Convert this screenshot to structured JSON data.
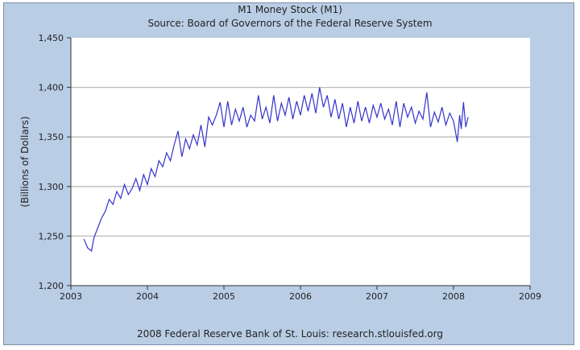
{
  "chart_data": {
    "type": "line",
    "title": "M1 Money Stock (M1)",
    "subtitle": "Source: Board of Governors of the Federal Reserve System",
    "ylabel": "(Billions of Dollars)",
    "xlabel": "",
    "footer": "2008 Federal Reserve Bank of St. Louis: research.stlouisfed.org",
    "xlim": [
      2003,
      2009
    ],
    "ylim": [
      1200,
      1450
    ],
    "xticks": [
      "2003",
      "2004",
      "2005",
      "2006",
      "2007",
      "2008",
      "2009"
    ],
    "yticks": [
      "1,200",
      "1,250",
      "1,300",
      "1,350",
      "1,400",
      "1,450"
    ],
    "grid": "horizontal",
    "line_color": "#3333cc",
    "plot_background": "#ffffff",
    "frame_background": "#b9cde5",
    "series": [
      {
        "x": [
          2003.17,
          2003.22,
          2003.27,
          2003.3,
          2003.35,
          2003.4,
          2003.45,
          2003.5,
          2003.55,
          2003.6,
          2003.65,
          2003.7,
          2003.75,
          2003.8,
          2003.85,
          2003.9,
          2003.95,
          2004.0,
          2004.05,
          2004.1,
          2004.15,
          2004.2,
          2004.25,
          2004.3,
          2004.35,
          2004.4,
          2004.45,
          2004.5,
          2004.55,
          2004.6,
          2004.65,
          2004.7,
          2004.75,
          2004.8,
          2004.85,
          2004.9,
          2004.95,
          2005.0,
          2005.05,
          2005.1,
          2005.15,
          2005.2,
          2005.25,
          2005.3,
          2005.35,
          2005.4,
          2005.45,
          2005.5,
          2005.55,
          2005.6,
          2005.65,
          2005.7,
          2005.75,
          2005.8,
          2005.85,
          2005.9,
          2005.95,
          2006.0,
          2006.05,
          2006.1,
          2006.15,
          2006.2,
          2006.25,
          2006.3,
          2006.35,
          2006.4,
          2006.45,
          2006.5,
          2006.55,
          2006.6,
          2006.65,
          2006.7,
          2006.75,
          2006.8,
          2006.85,
          2006.9,
          2006.95,
          2007.0,
          2007.05,
          2007.1,
          2007.15,
          2007.2,
          2007.25,
          2007.3,
          2007.35,
          2007.4,
          2007.45,
          2007.5,
          2007.55,
          2007.6,
          2007.65,
          2007.7,
          2007.75,
          2007.8,
          2007.85,
          2007.9,
          2007.95,
          2008.0,
          2008.05,
          2008.08,
          2008.1,
          2008.13,
          2008.16,
          2008.19
        ],
        "y": [
          1247,
          1238,
          1235,
          1248,
          1258,
          1268,
          1275,
          1287,
          1282,
          1295,
          1288,
          1302,
          1292,
          1298,
          1308,
          1296,
          1312,
          1302,
          1318,
          1310,
          1326,
          1320,
          1334,
          1326,
          1342,
          1356,
          1330,
          1348,
          1338,
          1352,
          1342,
          1362,
          1340,
          1370,
          1362,
          1372,
          1385,
          1360,
          1386,
          1362,
          1378,
          1366,
          1380,
          1360,
          1372,
          1366,
          1392,
          1368,
          1380,
          1364,
          1392,
          1366,
          1384,
          1372,
          1390,
          1368,
          1386,
          1372,
          1392,
          1376,
          1394,
          1374,
          1400,
          1380,
          1392,
          1370,
          1388,
          1368,
          1384,
          1360,
          1380,
          1364,
          1386,
          1366,
          1380,
          1364,
          1382,
          1370,
          1384,
          1368,
          1378,
          1362,
          1386,
          1360,
          1384,
          1370,
          1380,
          1364,
          1376,
          1368,
          1395,
          1360,
          1375,
          1365,
          1380,
          1362,
          1374,
          1366,
          1345,
          1372,
          1358,
          1385,
          1360,
          1370
        ]
      }
    ]
  }
}
